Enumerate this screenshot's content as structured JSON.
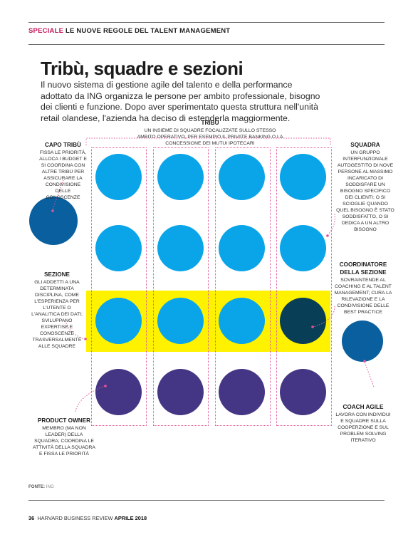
{
  "header": {
    "section_label": "SPECIALE",
    "section_title": "LE NUOVE REGOLE DEL TALENT MANAGEMENT"
  },
  "title": "Tribù, squadre e sezioni",
  "intro": "Il nuovo sistema di gestione agile del talento e della performance adottato da ING organizza le persone per ambito professionale, bisogno dei clienti e funzione. Dopo aver sperimentato questa struttura nell'unità retail olandese, l'azienda ha deciso di estenderla maggiormente.",
  "diagram": {
    "tribe": {
      "title": "TRIBÙ",
      "desc": "UN INSIEME DI SQUADRE FOCALIZZATE SULLO STESSO AMBITO OPERATIVO, PER ESEMPIO IL PRIVATE BANKING O LA CONCESSIONE DEI MUTUI IPOTECARI"
    },
    "tribe_lead": {
      "title": "CAPO TRIBÙ",
      "desc": "FISSA LE PRIORITÀ, ALLOCA I BUDGET E SI COORDINA CON ALTRE TRIBÙ PER ASSICURARE LA CONDIVISIONE DELLE CONOSCENZE"
    },
    "squad": {
      "title": "SQUADRA",
      "desc": "UN GRUPPO INTERFUNZIONALE AUTOGESTITO DI NOVE PERSONE AL MASSIMO INCARICATO DI SODDISFARE UN BISOGNO SPECIFICO DEI CLIENTI; O SI SCIOGLIE QUANDO QUEL BISOGNO È STATO SODDISFATTO, O SI DEDICA A UN ALTRO BISOGNO"
    },
    "chapter": {
      "title": "SEZIONE",
      "desc": "GLI ADDETTI A UNA DETERMINATA DISCIPLINA, COME L'ESPERIENZA PER L'UTENTE O L'ANALITICA DEI DATI; SVILUPPANO EXPERTISE E CONOSCENZE TRASVERSALMENTE ALLE SQUADRE"
    },
    "chapter_lead": {
      "title": "COORDINATORE DELLA SEZIONE",
      "desc": "SOVRAINTENDE AL COACHING E AL TALENT MANAGEMENT; CURA LA RILEVAZIONE E LA CONDIVISIONE DELLE BEST PRACTICE"
    },
    "agile_coach": {
      "title": "COACH AGILE",
      "desc": "LAVORA CON INDIVIDUI E SQUADRE SULLA COOPERZIONE E SUL PROBLEM SOLVING ITERATIVO"
    },
    "product_owner": {
      "title": "PRODUCT OWNER",
      "desc": "MEMBRO (MA NON LEADER) DELLA SQUADRA; COORDINA LE ATTIVITÀ DELLA SQUADRA E FISSA LE PRIORITÀ"
    },
    "colors": {
      "member": "#0aa5e9",
      "chapter_lead": "#093e57",
      "product_owner": "#453685",
      "tribe_lead": "#0a5f9e",
      "agile_coach": "#0a5f9e",
      "chapter_band": "#fff200",
      "connector": "#e0559a"
    }
  },
  "footer": {
    "source_label": "FONTE:",
    "source": "ING",
    "page": "36",
    "publication": "HARVARD BUSINESS REVIEW",
    "issue": "APRILE 2018"
  }
}
